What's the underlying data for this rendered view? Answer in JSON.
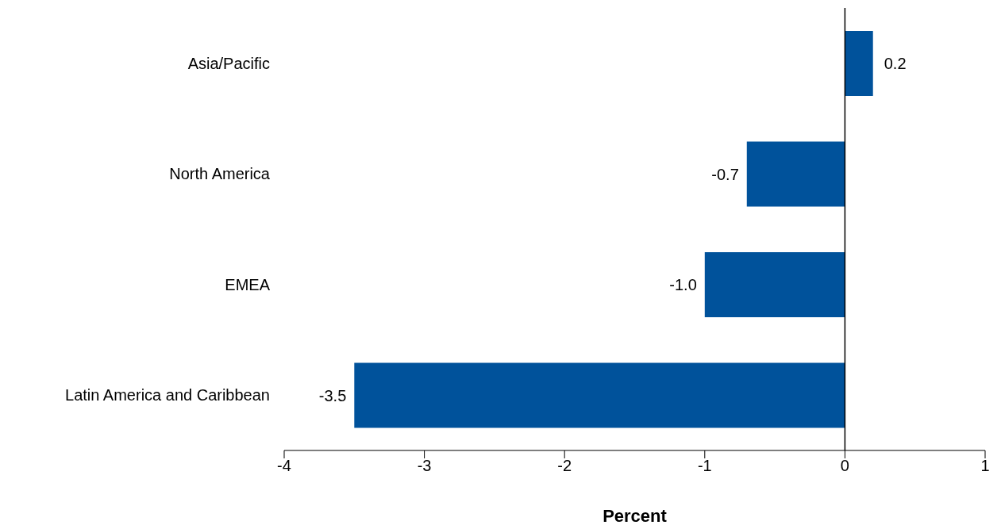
{
  "chart_data": {
    "type": "bar",
    "orientation": "horizontal",
    "categories": [
      "Asia/Pacific",
      "North America",
      "EMEA",
      "Latin America  and Caribbean"
    ],
    "values": [
      0.2,
      -0.7,
      -1.0,
      -3.5
    ],
    "color": "#00529b",
    "xlabel": "Percent",
    "xlim": [
      -4,
      1
    ],
    "xticks": [
      -4,
      -3,
      -2,
      -1,
      0,
      1
    ],
    "value_labels": [
      "0.2",
      "-0.7",
      "-1.0",
      "-3.5"
    ],
    "legend": false
  }
}
